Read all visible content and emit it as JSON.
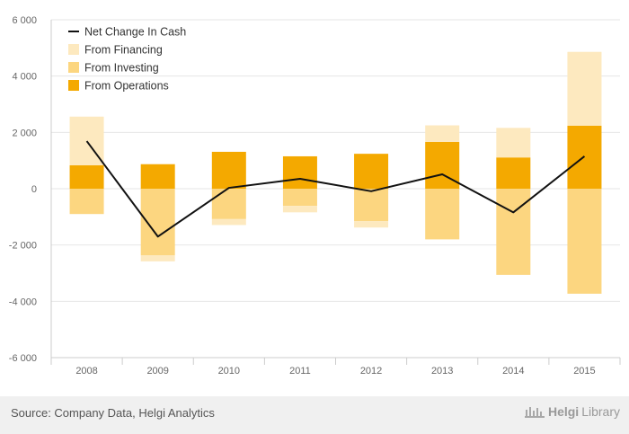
{
  "chart_data": {
    "type": "bar",
    "stacked": true,
    "categories": [
      "2008",
      "2009",
      "2010",
      "2011",
      "2012",
      "2013",
      "2014",
      "2015"
    ],
    "ylim": [
      -6000,
      6000
    ],
    "yticks": [
      6000,
      4000,
      2000,
      0,
      -2000,
      -4000,
      -6000
    ],
    "ytick_labels": [
      "6 000",
      "4 000",
      "2 000",
      "0",
      "-2 000",
      "-4 000",
      "-6 000"
    ],
    "grid": true,
    "legend_position": "top-left",
    "series": [
      {
        "name": "From Operations",
        "kind": "bar",
        "color": "#f4a900",
        "values": [
          830,
          870,
          1310,
          1150,
          1240,
          1660,
          1110,
          2240
        ]
      },
      {
        "name": "From Investing",
        "kind": "bar",
        "color": "#fcd680",
        "values": [
          -900,
          -2370,
          -1080,
          -610,
          -1150,
          -1800,
          -3060,
          -3730
        ]
      },
      {
        "name": "From Financing",
        "kind": "bar",
        "color": "#fde9bf",
        "values": [
          1730,
          -210,
          -210,
          -230,
          -230,
          590,
          1050,
          2620
        ]
      },
      {
        "name": "Net Change In Cash",
        "kind": "line",
        "color": "#111111",
        "values": [
          1690,
          -1700,
          30,
          350,
          -90,
          510,
          -840,
          1150
        ]
      }
    ],
    "legend_order": [
      "Net Change In Cash",
      "From Financing",
      "From Investing",
      "From Operations"
    ]
  },
  "footer": {
    "source": "Source: Company Data, Helgi Analytics",
    "brand_name": "Helgi",
    "brand_suffix": "Library"
  }
}
